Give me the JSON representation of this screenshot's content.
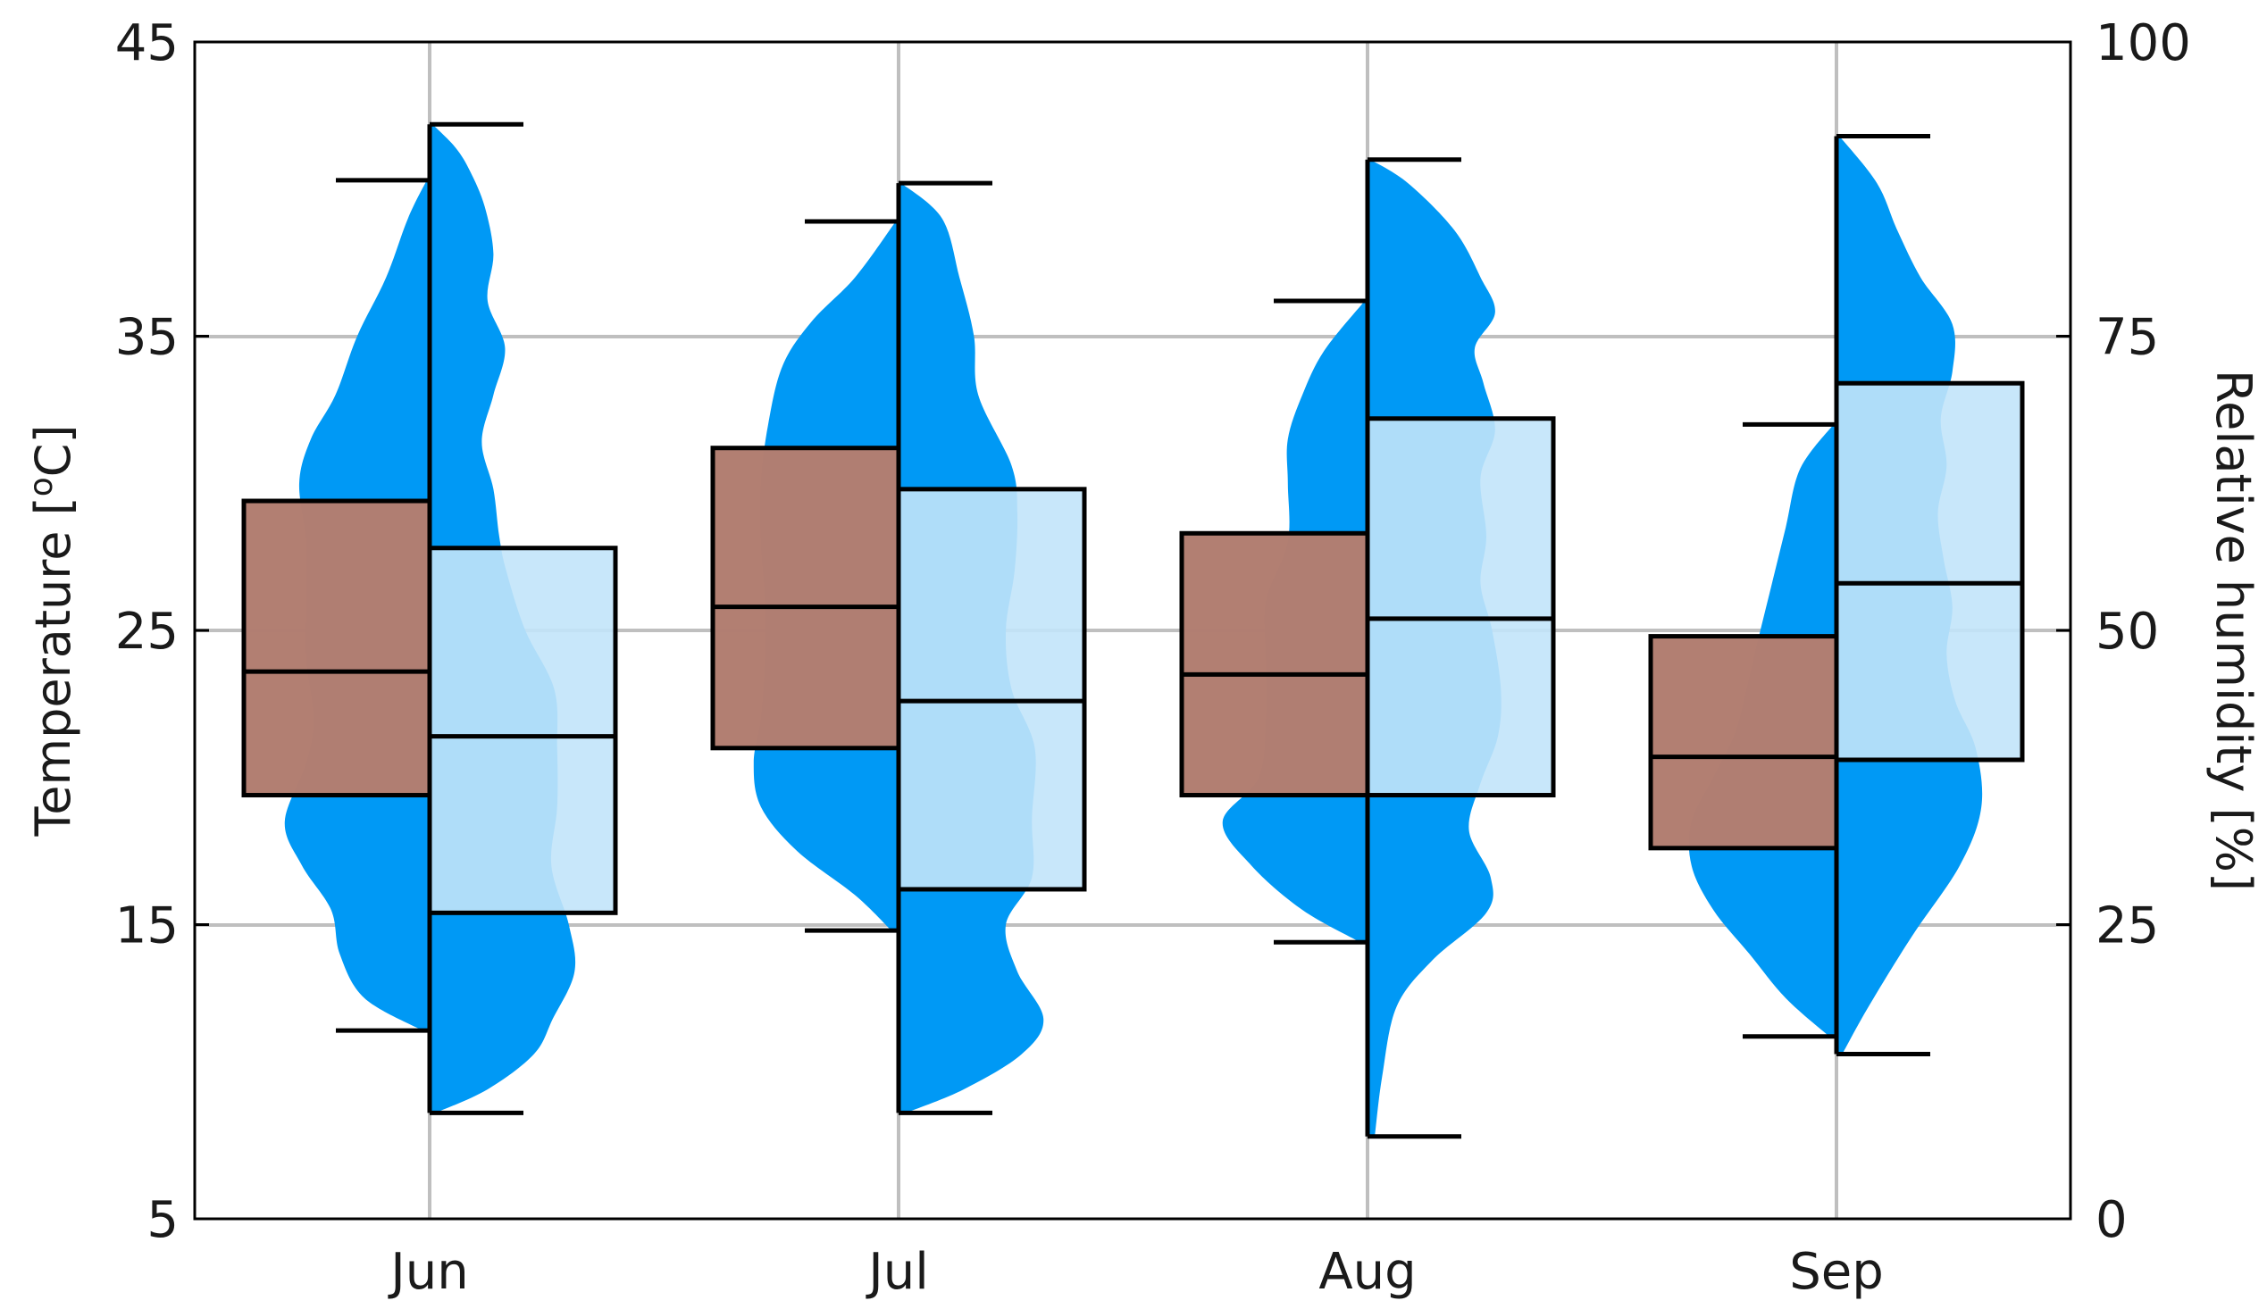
{
  "chart_data": {
    "type": "violin-box",
    "categories": [
      "Jun",
      "Jul",
      "Aug",
      "Sep"
    ],
    "left_axis": {
      "label_prefix": "Temperature [",
      "label_superscript": "o",
      "label_suffix": "C]",
      "ylim": [
        5,
        45
      ],
      "ticks": [
        5,
        15,
        25,
        35,
        45
      ]
    },
    "right_axis": {
      "label": "Relative humidity [%]",
      "ylim": [
        0,
        100
      ],
      "ticks": [
        0,
        25,
        50,
        75,
        100
      ]
    },
    "grid": true,
    "colors": {
      "temperature_box": "#a67a72",
      "temperature_box_highlight": "#e69070",
      "humidity_violin": "#0099f5",
      "humidity_box": "#c2e4fa",
      "grid": "#bfbfbf",
      "frame": "#000000"
    },
    "temperature": [
      {
        "month": "Jun",
        "whisker_low": 11.4,
        "q1": 19.4,
        "median": 23.6,
        "q3": 29.4,
        "whisker_high": 40.3
      },
      {
        "month": "Jul",
        "whisker_low": 14.8,
        "q1": 21.0,
        "median": 25.8,
        "q3": 31.2,
        "whisker_high": 38.9
      },
      {
        "month": "Aug",
        "whisker_low": 14.4,
        "q1": 19.4,
        "median": 23.5,
        "q3": 28.3,
        "whisker_high": 36.2
      },
      {
        "month": "Sep",
        "whisker_low": 11.2,
        "q1": 17.6,
        "median": 20.7,
        "q3": 24.8,
        "whisker_high": 32.0
      }
    ],
    "humidity": [
      {
        "month": "Jun",
        "whisker_low": 9,
        "q1": 26,
        "median": 41,
        "q3": 57,
        "whisker_high": 93
      },
      {
        "month": "Jul",
        "whisker_low": 9,
        "q1": 28,
        "median": 44,
        "q3": 62,
        "whisker_high": 88
      },
      {
        "month": "Aug",
        "whisker_low": 7,
        "q1": 36,
        "median": 51,
        "q3": 68,
        "whisker_high": 90
      },
      {
        "month": "Sep",
        "whisker_low": 14,
        "q1": 39,
        "median": 54,
        "q3": 71,
        "whisker_high": 92
      }
    ],
    "temperature_density": [
      {
        "month": "Jun",
        "profile": [
          [
            11.4,
            0.05
          ],
          [
            12.5,
            0.45
          ],
          [
            14,
            0.62
          ],
          [
            15.5,
            0.68
          ],
          [
            17,
            0.88
          ],
          [
            18.5,
            1.0
          ],
          [
            20.5,
            0.85
          ],
          [
            22,
            0.8
          ],
          [
            24,
            0.85
          ],
          [
            26,
            0.85
          ],
          [
            28,
            0.85
          ],
          [
            30,
            0.9
          ],
          [
            31.5,
            0.82
          ],
          [
            33,
            0.65
          ],
          [
            35,
            0.5
          ],
          [
            37,
            0.3
          ],
          [
            39,
            0.15
          ],
          [
            40.3,
            0.02
          ]
        ]
      },
      {
        "month": "Jul",
        "profile": [
          [
            14.8,
            0.05
          ],
          [
            16,
            0.3
          ],
          [
            17.5,
            0.7
          ],
          [
            19,
            0.95
          ],
          [
            20.5,
            1.0
          ],
          [
            22,
            0.95
          ],
          [
            24,
            0.92
          ],
          [
            26,
            0.92
          ],
          [
            28,
            0.95
          ],
          [
            30,
            0.95
          ],
          [
            32,
            0.9
          ],
          [
            34,
            0.8
          ],
          [
            35.5,
            0.6
          ],
          [
            37,
            0.3
          ],
          [
            38.9,
            0.02
          ]
        ]
      },
      {
        "month": "Aug",
        "profile": [
          [
            14.4,
            0.05
          ],
          [
            15.5,
            0.45
          ],
          [
            17,
            0.8
          ],
          [
            18.5,
            1.0
          ],
          [
            20,
            0.75
          ],
          [
            22,
            0.7
          ],
          [
            24,
            0.7
          ],
          [
            26,
            0.7
          ],
          [
            28,
            0.55
          ],
          [
            30,
            0.55
          ],
          [
            31.5,
            0.55
          ],
          [
            33,
            0.45
          ],
          [
            34.5,
            0.3
          ],
          [
            36.2,
            0.02
          ]
        ]
      },
      {
        "month": "Sep",
        "profile": [
          [
            11.2,
            0.05
          ],
          [
            12.5,
            0.35
          ],
          [
            14,
            0.6
          ],
          [
            15.5,
            0.85
          ],
          [
            17,
            1.0
          ],
          [
            18.5,
            1.0
          ],
          [
            20,
            0.85
          ],
          [
            21.5,
            0.7
          ],
          [
            23,
            0.62
          ],
          [
            24.5,
            0.55
          ],
          [
            26.5,
            0.45
          ],
          [
            28.5,
            0.35
          ],
          [
            30.5,
            0.25
          ],
          [
            32,
            0.02
          ]
        ]
      }
    ],
    "humidity_density": [
      {
        "month": "Jun",
        "profile": [
          [
            9,
            0.04
          ],
          [
            11,
            0.4
          ],
          [
            14,
            0.72
          ],
          [
            17,
            0.85
          ],
          [
            21,
            1.0
          ],
          [
            25,
            0.96
          ],
          [
            30,
            0.84
          ],
          [
            35,
            0.88
          ],
          [
            40,
            0.88
          ],
          [
            45,
            0.86
          ],
          [
            50,
            0.66
          ],
          [
            55,
            0.53
          ],
          [
            58,
            0.48
          ],
          [
            62,
            0.44
          ],
          [
            66,
            0.36
          ],
          [
            70,
            0.44
          ],
          [
            74,
            0.52
          ],
          [
            78,
            0.4
          ],
          [
            82,
            0.44
          ],
          [
            86,
            0.38
          ],
          [
            89,
            0.28
          ],
          [
            91,
            0.18
          ],
          [
            93,
            0.02
          ]
        ]
      },
      {
        "month": "Jul",
        "profile": [
          [
            9,
            0.05
          ],
          [
            11,
            0.45
          ],
          [
            14,
            0.85
          ],
          [
            17,
            1.0
          ],
          [
            21,
            0.82
          ],
          [
            25,
            0.74
          ],
          [
            29,
            0.92
          ],
          [
            34,
            0.92
          ],
          [
            40,
            0.94
          ],
          [
            45,
            0.78
          ],
          [
            50,
            0.74
          ],
          [
            55,
            0.8
          ],
          [
            60,
            0.82
          ],
          [
            64,
            0.78
          ],
          [
            70,
            0.55
          ],
          [
            75,
            0.52
          ],
          [
            80,
            0.42
          ],
          [
            85,
            0.3
          ],
          [
            88,
            0.02
          ]
        ]
      },
      {
        "month": "Aug",
        "profile": [
          [
            7,
            0.05
          ],
          [
            12,
            0.1
          ],
          [
            18,
            0.2
          ],
          [
            22,
            0.45
          ],
          [
            26,
            0.82
          ],
          [
            29,
            0.85
          ],
          [
            33,
            0.7
          ],
          [
            37,
            0.78
          ],
          [
            41,
            0.9
          ],
          [
            45,
            0.92
          ],
          [
            50,
            0.86
          ],
          [
            54,
            0.78
          ],
          [
            58,
            0.82
          ],
          [
            63,
            0.78
          ],
          [
            67,
            0.88
          ],
          [
            71,
            0.8
          ],
          [
            74,
            0.74
          ],
          [
            77,
            0.88
          ],
          [
            80,
            0.78
          ],
          [
            84,
            0.6
          ],
          [
            88,
            0.28
          ],
          [
            90,
            0.02
          ]
        ]
      },
      {
        "month": "Sep",
        "profile": [
          [
            14,
            0.04
          ],
          [
            18,
            0.22
          ],
          [
            24,
            0.52
          ],
          [
            30,
            0.85
          ],
          [
            35,
            1.0
          ],
          [
            40,
            0.96
          ],
          [
            44,
            0.82
          ],
          [
            48,
            0.76
          ],
          [
            52,
            0.8
          ],
          [
            56,
            0.74
          ],
          [
            60,
            0.7
          ],
          [
            64,
            0.76
          ],
          [
            68,
            0.72
          ],
          [
            72,
            0.8
          ],
          [
            76,
            0.8
          ],
          [
            80,
            0.58
          ],
          [
            84,
            0.42
          ],
          [
            88,
            0.28
          ],
          [
            92,
            0.02
          ]
        ]
      }
    ]
  }
}
